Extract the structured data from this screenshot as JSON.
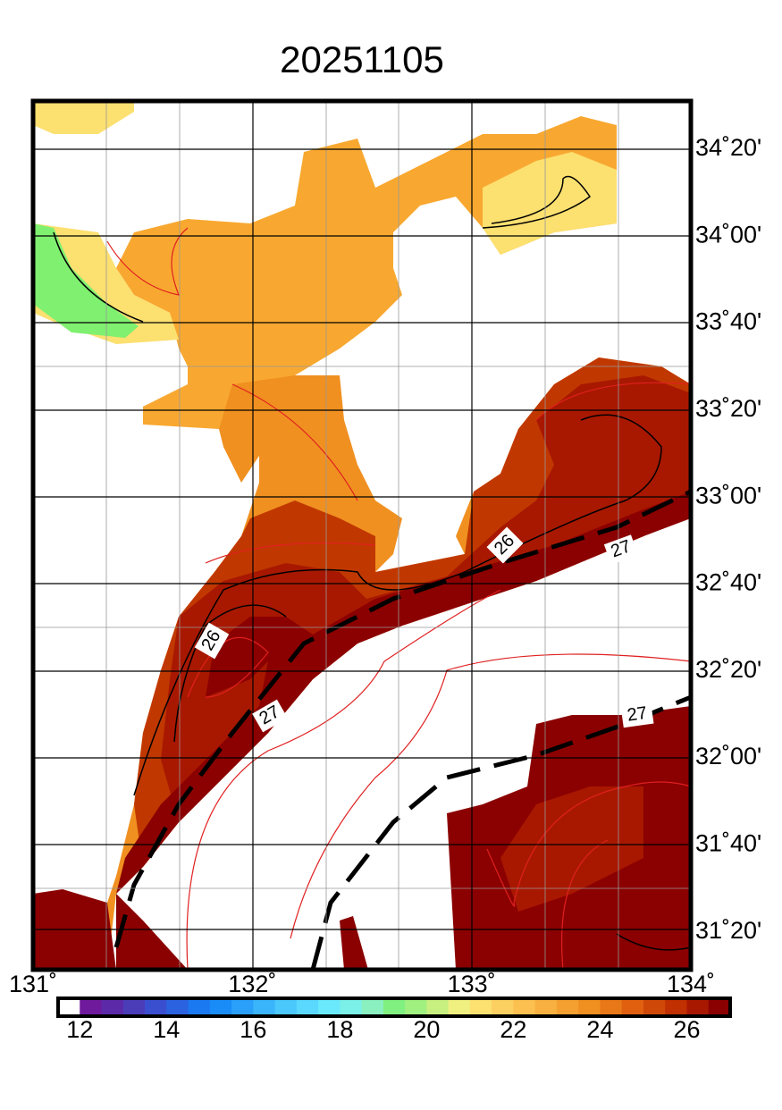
{
  "title": "20251105",
  "map": {
    "lat_labels": [
      "34˚20'",
      "34˚00'",
      "33˚40'",
      "33˚20'",
      "33˚00'",
      "32˚40'",
      "32˚20'",
      "32˚00'",
      "31˚40'",
      "31˚20'"
    ],
    "lon_labels": [
      "131˚",
      "132˚",
      "133˚",
      "134˚"
    ],
    "contour_labels": [
      "26",
      "27",
      "26",
      "27",
      "27"
    ]
  },
  "colorbar": {
    "colors": [
      "#ffffff",
      "#6f1a9c",
      "#5c2aa8",
      "#4b3cb8",
      "#3a4fd0",
      "#2a62e0",
      "#1a78f0",
      "#1a8cf8",
      "#2aa0fa",
      "#3ab4fb",
      "#4ac8fc",
      "#5ad8fd",
      "#6ae8fc",
      "#7af0e8",
      "#8af0c0",
      "#80f080",
      "#a0f080",
      "#c8f080",
      "#f0f080",
      "#fce070",
      "#fcd060",
      "#fcc050",
      "#f8b040",
      "#f4a030",
      "#f09020",
      "#e87818",
      "#e06010",
      "#d04808",
      "#c03000",
      "#a81800",
      "#8b0000"
    ],
    "labels": [
      "12",
      "14",
      "16",
      "18",
      "20",
      "22",
      "24",
      "26"
    ]
  }
}
